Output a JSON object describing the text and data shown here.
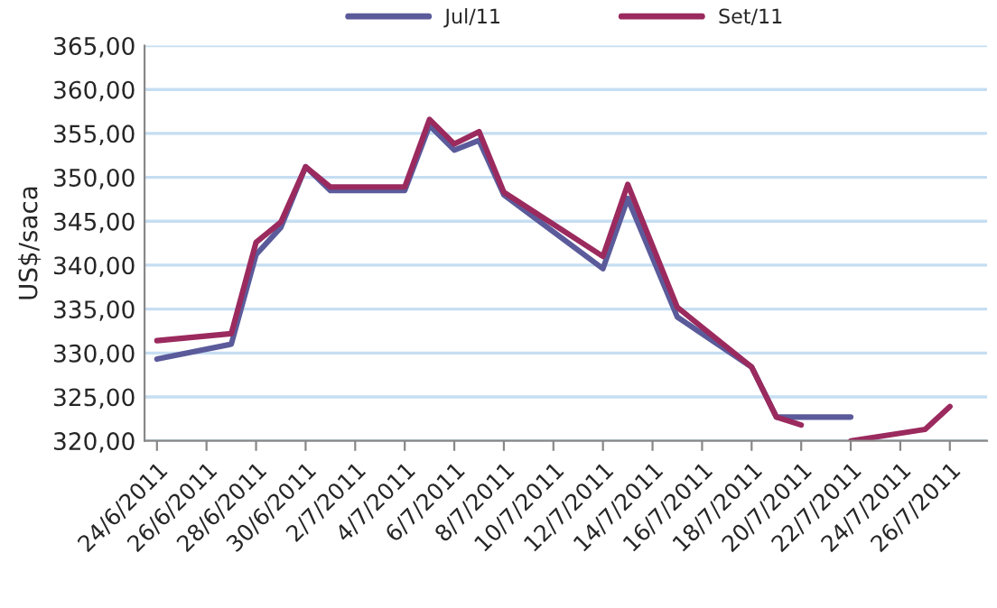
{
  "chart_data": {
    "type": "line",
    "ylabel": "US$/saca",
    "x": [
      "2011-06-24",
      "2011-06-27",
      "2011-06-28",
      "2011-06-29",
      "2011-06-30",
      "2011-07-01",
      "2011-07-04",
      "2011-07-05",
      "2011-07-06",
      "2011-07-07",
      "2011-07-08",
      "2011-07-12",
      "2011-07-13",
      "2011-07-15",
      "2011-07-18",
      "2011-07-19",
      "2011-07-20",
      "2011-07-21",
      "2011-07-22",
      "2011-07-25",
      "2011-07-26"
    ],
    "series": [
      {
        "name": "Jul/11",
        "color": "#5b5b9b",
        "values": [
          329.3,
          331.0,
          341.2,
          344.3,
          351.2,
          348.5,
          348.5,
          355.9,
          353.1,
          354.2,
          348.0,
          339.6,
          347.6,
          334.1,
          328.4,
          322.7,
          322.7,
          322.7,
          322.7,
          null,
          null
        ]
      },
      {
        "name": "Set/11",
        "color": "#9b2a5e",
        "values": [
          331.4,
          332.2,
          342.6,
          344.9,
          351.2,
          348.9,
          348.9,
          356.6,
          353.8,
          355.2,
          348.3,
          341.0,
          349.2,
          335.2,
          328.4,
          322.7,
          321.8,
          null,
          320.0,
          321.3,
          323.9
        ]
      }
    ],
    "xlim": [
      "2011-06-23T12:00",
      "2011-07-27T12:00"
    ],
    "xticks": [
      {
        "value": "2011-06-24",
        "label": "24/6/2011"
      },
      {
        "value": "2011-06-26",
        "label": "26/6/2011"
      },
      {
        "value": "2011-06-28",
        "label": "28/6/2011"
      },
      {
        "value": "2011-06-30",
        "label": "30/6/2011"
      },
      {
        "value": "2011-07-02",
        "label": "2/7/2011"
      },
      {
        "value": "2011-07-04",
        "label": "4/7/2011"
      },
      {
        "value": "2011-07-06",
        "label": "6/7/2011"
      },
      {
        "value": "2011-07-08",
        "label": "8/7/2011"
      },
      {
        "value": "2011-07-10",
        "label": "10/7/2011"
      },
      {
        "value": "2011-07-12",
        "label": "12/7/2011"
      },
      {
        "value": "2011-07-14",
        "label": "14/7/2011"
      },
      {
        "value": "2011-07-16",
        "label": "16/7/2011"
      },
      {
        "value": "2011-07-18",
        "label": "18/7/2011"
      },
      {
        "value": "2011-07-20",
        "label": "20/7/2011"
      },
      {
        "value": "2011-07-22",
        "label": "22/7/2011"
      },
      {
        "value": "2011-07-24",
        "label": "24/7/2011"
      },
      {
        "value": "2011-07-26",
        "label": "26/7/2011"
      }
    ],
    "ylim": [
      320,
      365
    ],
    "yticks": [
      {
        "value": 320,
        "label": "320,00"
      },
      {
        "value": 325,
        "label": "325,00"
      },
      {
        "value": 330,
        "label": "330,00"
      },
      {
        "value": 335,
        "label": "335,00"
      },
      {
        "value": 340,
        "label": "340,00"
      },
      {
        "value": 345,
        "label": "345,00"
      },
      {
        "value": 350,
        "label": "350,00"
      },
      {
        "value": 355,
        "label": "355,00"
      },
      {
        "value": 360,
        "label": "360,00"
      },
      {
        "value": 365,
        "label": "365,00"
      }
    ],
    "grid": "y",
    "legend": "top",
    "marker": "none",
    "line_style": "solid"
  }
}
